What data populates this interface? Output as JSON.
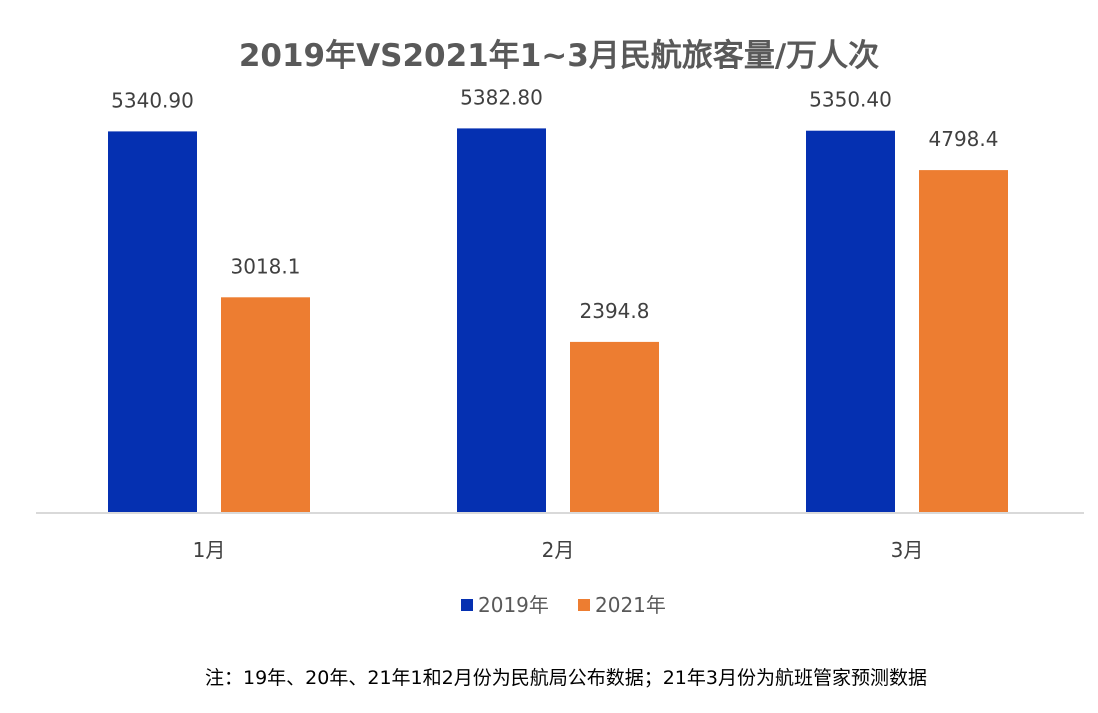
{
  "chart_data": {
    "type": "bar",
    "title": "2019年VS2021年1~3月民航旅客量/万人次",
    "categories": [
      "1月",
      "2月",
      "3月"
    ],
    "series": [
      {
        "name": "2019年",
        "values": [
          5340.9,
          5382.8,
          5350.4
        ],
        "labels": [
          "5340.90",
          "5382.80",
          "5350.40"
        ],
        "color": "#0530B1"
      },
      {
        "name": "2021年",
        "values": [
          3018.1,
          2394.8,
          4798.4
        ],
        "labels": [
          "3018.1",
          "2394.8",
          "4798.4"
        ],
        "color": "#ED7D31"
      }
    ],
    "ylim": [
      0,
      5850
    ],
    "xlabel": "",
    "ylabel": "",
    "grid": false,
    "legend_position": "bottom",
    "axis_color": "#D9D9D9"
  },
  "footnote": "注：19年、20年、21年1和2月份为民航局公布数据；21年3月份为航班管家预测数据"
}
